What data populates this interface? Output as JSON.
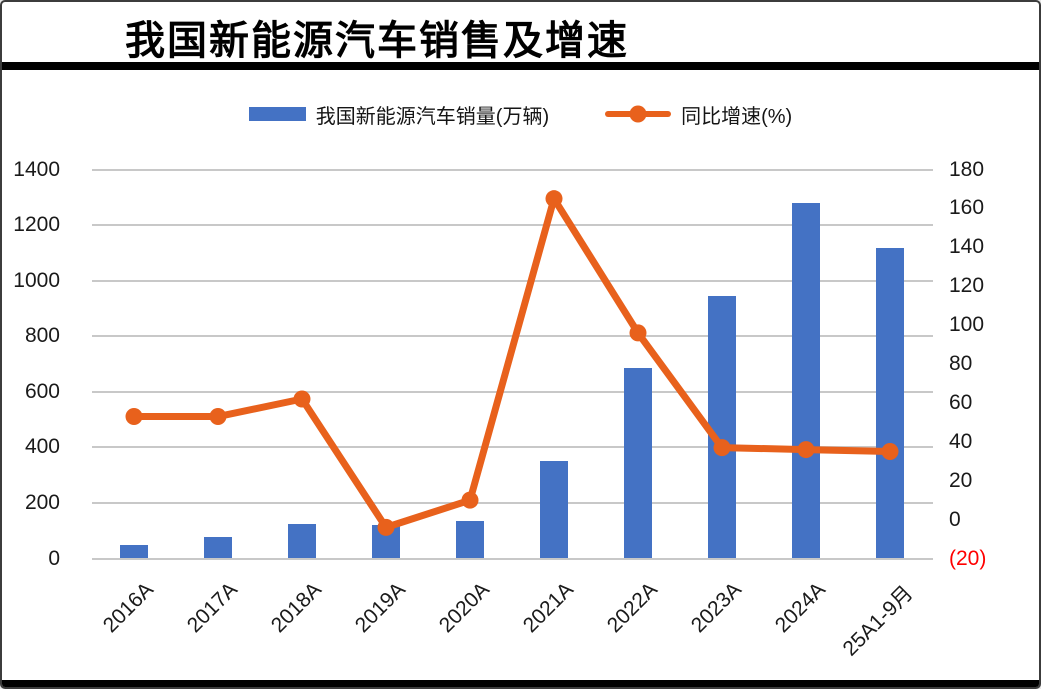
{
  "title": "我国新能源汽车销售及增速",
  "legend": {
    "items": [
      {
        "label": "我国新能源汽车销量(万辆)",
        "marker": "bar-swatch",
        "color": "#4472C4"
      },
      {
        "label": "同比增速(%)",
        "marker": "line-dot-swatch",
        "color": "#E8611C"
      }
    ]
  },
  "theme": {
    "bar_color": "#4472C4",
    "line_color": "#E8611C",
    "grid_color": "#C8C8C8",
    "negative_tick_color": "#FF0000",
    "rule_color": "#000000",
    "background": "#FFFFFF"
  },
  "chart_data": {
    "type": "bar",
    "subtype": "combo-bar-line-dual-axis",
    "title": "我国新能源汽车销售及增速",
    "grid": true,
    "legend_position": "top",
    "categories": [
      "2016A",
      "2017A",
      "2018A",
      "2019A",
      "2020A",
      "2021A",
      "2022A",
      "2023A",
      "2024A",
      "25A1-9月"
    ],
    "series": [
      {
        "name": "我国新能源汽车销量(万辆)",
        "type": "bar",
        "axis": "left",
        "color": "#4472C4",
        "values": [
          50,
          77,
          124,
          121,
          135,
          351,
          686,
          943,
          1281,
          1118
        ]
      },
      {
        "name": "同比增速(%)",
        "type": "line",
        "axis": "right",
        "color": "#E8611C",
        "values": [
          53,
          53,
          62,
          -4,
          10,
          165,
          96,
          37,
          36,
          35
        ]
      }
    ],
    "left_axis": {
      "min": 0,
      "max": 1400,
      "step": 200,
      "ticks": [
        {
          "value": 1400,
          "label": "1400"
        },
        {
          "value": 1200,
          "label": "1200"
        },
        {
          "value": 1000,
          "label": "1000"
        },
        {
          "value": 800,
          "label": "800"
        },
        {
          "value": 600,
          "label": "600"
        },
        {
          "value": 400,
          "label": "400"
        },
        {
          "value": 200,
          "label": "200"
        },
        {
          "value": 0,
          "label": "0"
        }
      ]
    },
    "right_axis": {
      "min": -20,
      "max": 180,
      "step": 20,
      "negative_style": "red-parentheses",
      "ticks": [
        {
          "value": 180,
          "label": "180"
        },
        {
          "value": 160,
          "label": "160"
        },
        {
          "value": 140,
          "label": "140"
        },
        {
          "value": 120,
          "label": "120"
        },
        {
          "value": 100,
          "label": "100"
        },
        {
          "value": 80,
          "label": "80"
        },
        {
          "value": 60,
          "label": "60"
        },
        {
          "value": 40,
          "label": "40"
        },
        {
          "value": 20,
          "label": "20"
        },
        {
          "value": 0,
          "label": "0"
        },
        {
          "value": -20,
          "label": "(20)",
          "negative": true
        }
      ]
    }
  }
}
